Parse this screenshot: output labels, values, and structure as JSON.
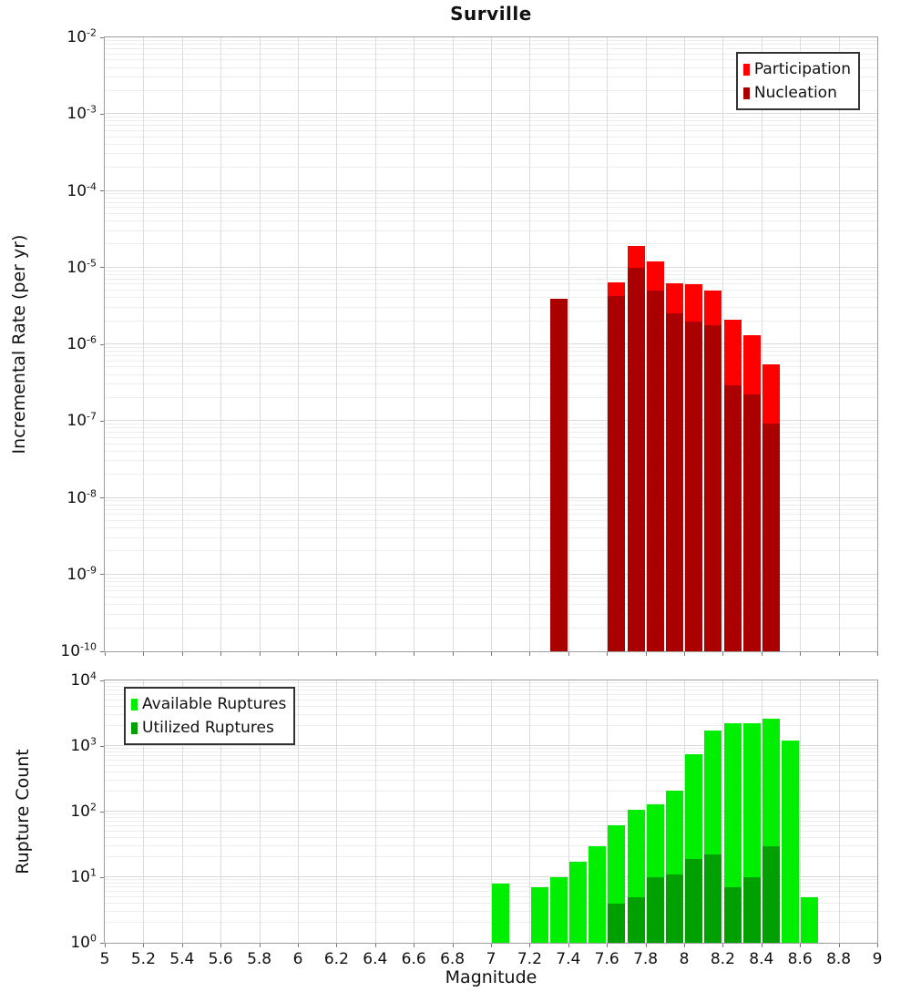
{
  "figure_title": "Surville",
  "axis_color": "#9e9e9e",
  "grid_major_color": "#d9d9d9",
  "grid_minor_color": "#ededed",
  "chart_data": [
    {
      "type": "bar",
      "title": "Surville",
      "ylabel": "Incremental Rate (per yr)",
      "xlabel": "Magnitude",
      "x_range": [
        5,
        9
      ],
      "y_range": [
        1e-10,
        0.01
      ],
      "y_scale": "log",
      "grid": true,
      "bin_width": 0.1,
      "legend_position": "top-right",
      "y_tick_exponents": [
        -2,
        -3,
        -4,
        -5,
        -6,
        -7,
        -8,
        -9,
        -10
      ],
      "categories": [
        7.35,
        7.65,
        7.75,
        7.85,
        7.95,
        8.05,
        8.15,
        8.25,
        8.35,
        8.45
      ],
      "series": [
        {
          "name": "Participation",
          "color": "#ff0000",
          "values": [
            3.9e-06,
            6.5e-06,
            1.9e-05,
            1.2e-05,
            6.2e-06,
            6e-06,
            5e-06,
            2.1e-06,
            1.3e-06,
            5.5e-07
          ]
        },
        {
          "name": "Nucleation",
          "color": "#aa0000",
          "values": [
            3.9e-06,
            4.3e-06,
            1e-05,
            5e-06,
            2.5e-06,
            2e-06,
            1.8e-06,
            2.9e-07,
            2.2e-07,
            9.3e-08
          ]
        }
      ]
    },
    {
      "type": "bar",
      "title": "",
      "ylabel": "Rupture Count",
      "xlabel": "Magnitude",
      "x_range": [
        5,
        9
      ],
      "y_range": [
        1,
        10000
      ],
      "y_scale": "log",
      "grid": true,
      "bin_width": 0.1,
      "legend_position": "top-left",
      "y_tick_exponents": [
        4,
        3,
        2,
        1,
        0
      ],
      "x_tick_labels": [
        "5",
        "5.2",
        "5.4",
        "5.6",
        "5.8",
        "6",
        "6.2",
        "6.4",
        "6.6",
        "6.8",
        "7",
        "7.2",
        "7.4",
        "7.6",
        "7.8",
        "8",
        "8.2",
        "8.4",
        "8.6",
        "8.8",
        "9"
      ],
      "categories": [
        7.05,
        7.25,
        7.35,
        7.45,
        7.55,
        7.65,
        7.75,
        7.85,
        7.95,
        8.05,
        8.15,
        8.25,
        8.35,
        8.45,
        8.55,
        8.65
      ],
      "series": [
        {
          "name": "Available Ruptures",
          "color": "#00ee00",
          "values": [
            8,
            7,
            10,
            17,
            30,
            62,
            105,
            130,
            210,
            740,
            1700,
            2200,
            2200,
            2600,
            1200,
            5
          ]
        },
        {
          "name": "Utilized Ruptures",
          "color": "#00a000",
          "values": [
            0,
            0,
            1,
            0,
            0,
            4,
            5,
            10,
            11,
            19,
            22,
            7,
            10,
            30,
            0,
            0
          ]
        }
      ]
    }
  ]
}
